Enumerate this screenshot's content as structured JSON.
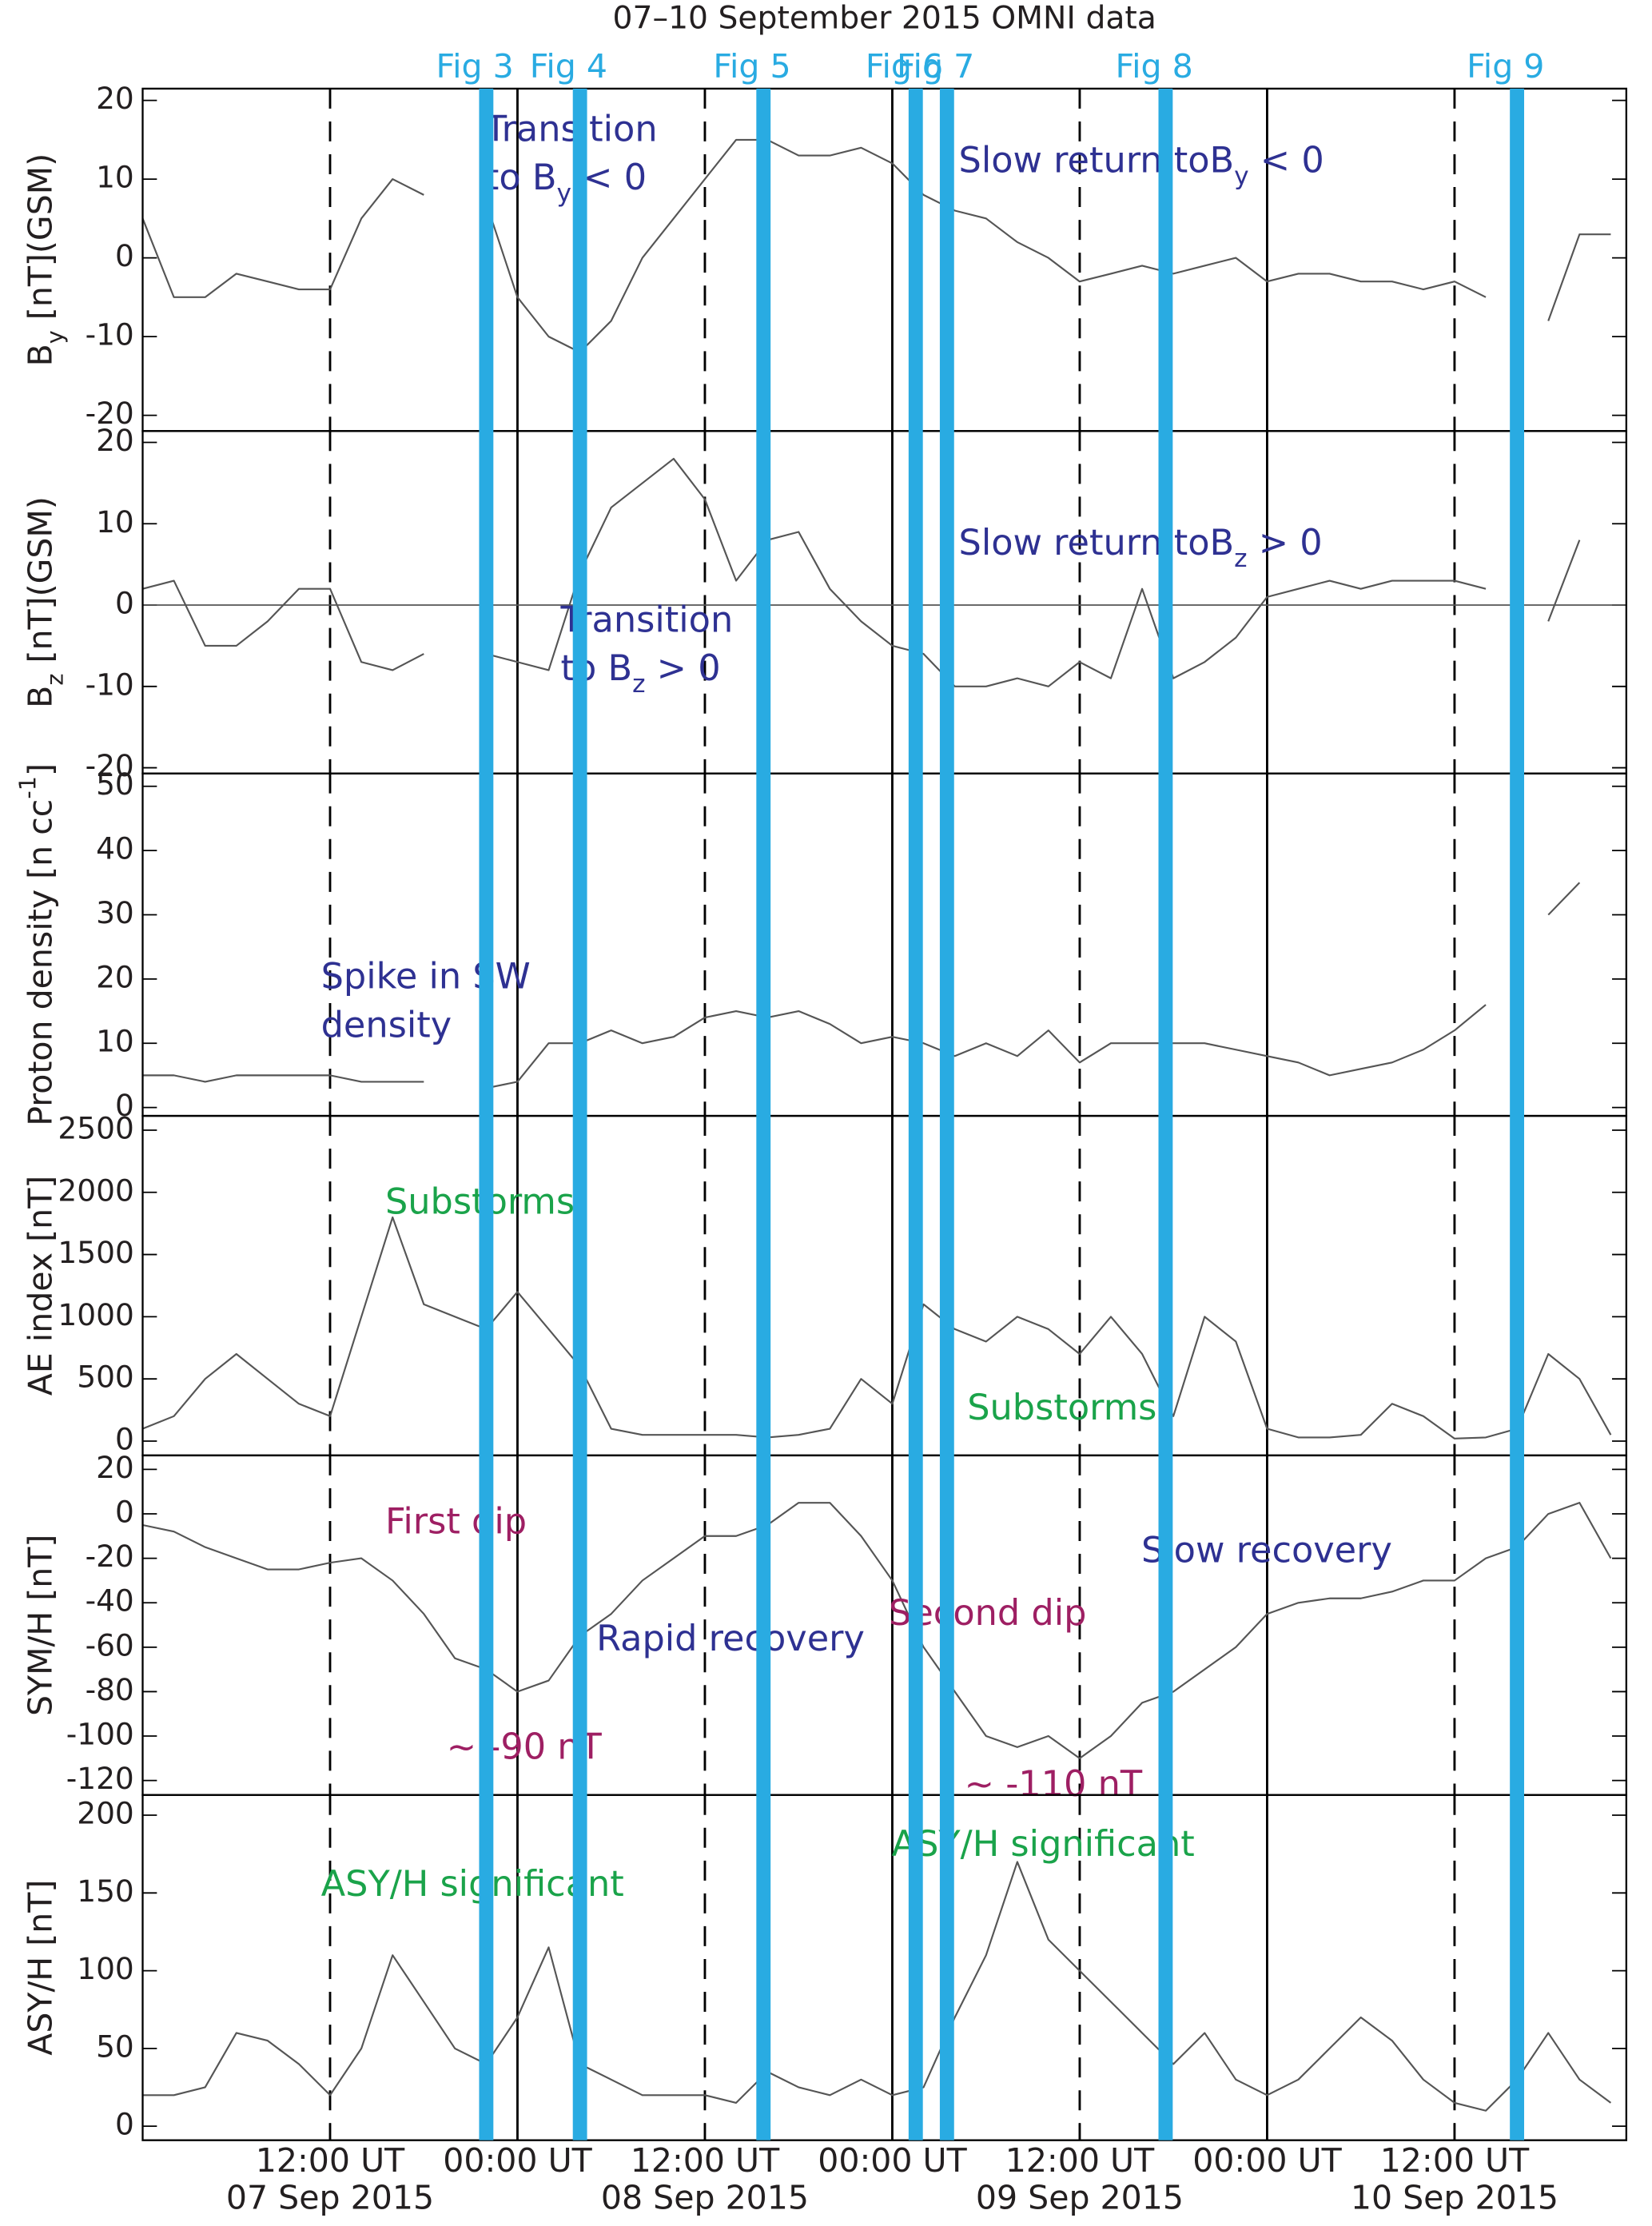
{
  "chart_data": {
    "title": "07–10 September 2015 OMNI data",
    "xlim": [
      "2015-09-07T00:00",
      "2015-09-10T23:00"
    ],
    "xticks": [
      {
        "value": "2015-09-07T12:00",
        "label": "12:00 UT",
        "line": "dashed"
      },
      {
        "value": "2015-09-08T00:00",
        "label": "00:00 UT",
        "line": "solid"
      },
      {
        "value": "2015-09-08T12:00",
        "label": "12:00 UT",
        "line": "dashed"
      },
      {
        "value": "2015-09-09T00:00",
        "label": "00:00 UT",
        "line": "solid"
      },
      {
        "value": "2015-09-09T12:00",
        "label": "12:00 UT",
        "line": "dashed"
      },
      {
        "value": "2015-09-10T00:00",
        "label": "00:00 UT",
        "line": "solid"
      },
      {
        "value": "2015-09-10T12:00",
        "label": "12:00 UT",
        "line": "dashed"
      }
    ],
    "xtick_dates": [
      {
        "value": "2015-09-07T12:00",
        "label": "07 Sep 2015"
      },
      {
        "value": "2015-09-08T12:00",
        "label": "08 Sep 2015"
      },
      {
        "value": "2015-09-09T12:00",
        "label": "09 Sep 2015"
      },
      {
        "value": "2015-09-10T12:00",
        "label": "10 Sep 2015"
      }
    ],
    "marker_color": "#29abe2",
    "markers": [
      {
        "label": "Fig 3",
        "x": "2015-09-07T22:00"
      },
      {
        "label": "Fig 4",
        "x": "2015-09-08T04:00"
      },
      {
        "label": "Fig 5",
        "x": "2015-09-08T15:45"
      },
      {
        "label": "Fig 6",
        "x": "2015-09-09T01:30"
      },
      {
        "label": "Fig 7",
        "x": "2015-09-09T03:30"
      },
      {
        "label": "Fig 8",
        "x": "2015-09-09T17:30"
      },
      {
        "label": "Fig 9",
        "x": "2015-09-10T16:00"
      }
    ],
    "x": [
      "2015-09-07T00:00",
      "2015-09-07T02:00",
      "2015-09-07T04:00",
      "2015-09-07T06:00",
      "2015-09-07T08:00",
      "2015-09-07T10:00",
      "2015-09-07T12:00",
      "2015-09-07T14:00",
      "2015-09-07T16:00",
      "2015-09-07T18:00",
      "2015-09-07T20:00",
      "2015-09-07T22:00",
      "2015-09-08T00:00",
      "2015-09-08T02:00",
      "2015-09-08T04:00",
      "2015-09-08T06:00",
      "2015-09-08T08:00",
      "2015-09-08T10:00",
      "2015-09-08T12:00",
      "2015-09-08T14:00",
      "2015-09-08T16:00",
      "2015-09-08T18:00",
      "2015-09-08T20:00",
      "2015-09-08T22:00",
      "2015-09-09T00:00",
      "2015-09-09T02:00",
      "2015-09-09T04:00",
      "2015-09-09T06:00",
      "2015-09-09T08:00",
      "2015-09-09T10:00",
      "2015-09-09T12:00",
      "2015-09-09T14:00",
      "2015-09-09T16:00",
      "2015-09-09T18:00",
      "2015-09-09T20:00",
      "2015-09-09T22:00",
      "2015-09-10T00:00",
      "2015-09-10T02:00",
      "2015-09-10T04:00",
      "2015-09-10T06:00",
      "2015-09-10T08:00",
      "2015-09-10T10:00",
      "2015-09-10T12:00",
      "2015-09-10T14:00",
      "2015-09-10T16:00",
      "2015-09-10T18:00",
      "2015-09-10T20:00",
      "2015-09-10T22:00"
    ],
    "panels": [
      {
        "type": "line",
        "color": "#555555",
        "ylabel": [
          "B",
          {
            "text": "y",
            "script": "sub"
          },
          " [nT](GSM)"
        ],
        "ylim": [
          -22,
          21.5
        ],
        "yticks": [
          -20,
          -10,
          0,
          10,
          20
        ],
        "values": [
          5,
          -5,
          -5,
          -2,
          -3,
          -4,
          -4,
          5,
          10,
          8,
          null,
          7,
          -5,
          -10,
          -12,
          -8,
          0,
          5,
          10,
          15,
          15,
          13,
          13,
          14,
          12,
          8,
          6,
          5,
          2,
          0,
          -3,
          -2,
          -1,
          -2,
          -1,
          0,
          -3,
          -2,
          -2,
          -3,
          -3,
          -4,
          -3,
          -5,
          null,
          -8,
          3,
          3
        ],
        "annotations": [
          {
            "color": "#2e3192",
            "lines": [
              [
                "Transition"
              ],
              [
                "to B",
                {
                  "text": "y",
                  "script": "sub"
                },
                " < 0"
              ]
            ]
          },
          {
            "color": "#2e3192",
            "lines": [
              [
                "Slow return toB",
                {
                  "text": "y",
                  "script": "sub"
                },
                " < 0"
              ]
            ]
          }
        ]
      },
      {
        "type": "line",
        "color": "#555555",
        "zero_line": true,
        "ylabel": [
          "B",
          {
            "text": "z",
            "script": "sub"
          },
          " [nT](GSM)"
        ],
        "ylim": [
          -20.7,
          21.4
        ],
        "yticks": [
          -20,
          -10,
          0,
          10,
          20
        ],
        "values": [
          2,
          3,
          -5,
          -5,
          -2,
          2,
          2,
          -7,
          -8,
          -6,
          null,
          -6,
          -7,
          -8,
          4,
          12,
          15,
          18,
          13,
          3,
          8,
          9,
          2,
          -2,
          -5,
          -6,
          -10,
          -10,
          -9,
          -10,
          -7,
          -9,
          2,
          -9,
          -7,
          -4,
          1,
          2,
          3,
          2,
          3,
          3,
          3,
          2,
          null,
          -2,
          8,
          null
        ],
        "annotations": [
          {
            "color": "#2e3192",
            "lines": [
              [
                "Slow return toB",
                {
                  "text": "z",
                  "script": "sub"
                },
                " > 0"
              ]
            ]
          },
          {
            "color": "#2e3192",
            "lines": [
              [
                "Transition"
              ],
              [
                "to B",
                {
                  "text": "z",
                  "script": "sub"
                },
                " > 0"
              ]
            ]
          }
        ]
      },
      {
        "type": "line",
        "color": "#555555",
        "ylabel": [
          "Proton density [n cc",
          {
            "text": "-1",
            "script": "super"
          },
          "]"
        ],
        "ylim": [
          -1.3,
          52
        ],
        "yticks": [
          0,
          10,
          20,
          30,
          40,
          50
        ],
        "values": [
          5,
          5,
          4,
          5,
          5,
          5,
          5,
          4,
          4,
          4,
          null,
          3,
          4,
          10,
          10,
          12,
          10,
          11,
          14,
          15,
          14,
          15,
          13,
          10,
          11,
          10,
          8,
          10,
          8,
          12,
          7,
          10,
          10,
          10,
          10,
          9,
          8,
          7,
          5,
          6,
          7,
          9,
          12,
          16,
          null,
          30,
          35,
          null
        ],
        "annotations": [
          {
            "color": "#2e3192",
            "lines": [
              [
                "Spike in SW"
              ],
              [
                "density"
              ]
            ]
          }
        ]
      },
      {
        "type": "line",
        "color": "#555555",
        "ylabel": [
          "AE index  [nT]"
        ],
        "ylim": [
          -115,
          2615
        ],
        "yticks": [
          0,
          500,
          1000,
          1500,
          2000,
          2500
        ],
        "values": [
          100,
          200,
          500,
          700,
          500,
          300,
          200,
          1000,
          1800,
          1100,
          1000,
          900,
          1200,
          900,
          600,
          100,
          50,
          50,
          50,
          50,
          30,
          50,
          100,
          500,
          300,
          1100,
          900,
          800,
          1000,
          900,
          700,
          1000,
          700,
          200,
          1000,
          800,
          100,
          30,
          30,
          50,
          300,
          200,
          20,
          30,
          100,
          700,
          500,
          50
        ],
        "annotations": [
          {
            "color": "#1aa34a",
            "lines": [
              [
                "Substorms"
              ]
            ]
          },
          {
            "color": "#1aa34a",
            "lines": [
              [
                "Substorms"
              ]
            ]
          }
        ]
      },
      {
        "type": "line",
        "color": "#555555",
        "ylabel": [
          "SYM/H [nT]"
        ],
        "ylim": [
          -126.5,
          26.3
        ],
        "yticks": [
          -120,
          -100,
          -80,
          -60,
          -40,
          -20,
          0,
          20
        ],
        "values": [
          -5,
          -8,
          -15,
          -20,
          -25,
          -25,
          -22,
          -20,
          -30,
          -45,
          -65,
          -70,
          -80,
          -75,
          -55,
          -45,
          -30,
          -20,
          -10,
          -10,
          -5,
          5,
          5,
          -10,
          -30,
          -60,
          -80,
          -100,
          -105,
          -100,
          -110,
          -100,
          -85,
          -80,
          -70,
          -60,
          -45,
          -40,
          -38,
          -38,
          -35,
          -30,
          -30,
          -20,
          -15,
          0,
          5,
          -20
        ],
        "annotations": [
          {
            "color": "#9e1f63",
            "lines": [
              [
                "First dip"
              ]
            ]
          },
          {
            "color": "#9e1f63",
            "lines": [
              [
                "~ -90 nT"
              ]
            ]
          },
          {
            "color": "#2e3192",
            "lines": [
              [
                "Rapid recovery"
              ]
            ]
          },
          {
            "color": "#9e1f63",
            "lines": [
              [
                "Second dip"
              ]
            ]
          },
          {
            "color": "#2e3192",
            "lines": [
              [
                "Slow recovery"
              ]
            ]
          },
          {
            "color": "#9e1f63",
            "lines": [
              [
                "~ -110 nT"
              ]
            ]
          }
        ]
      },
      {
        "type": "line",
        "color": "#555555",
        "ylabel": [
          "ASY/H [nT]"
        ],
        "ylim": [
          -9,
          213
        ],
        "yticks": [
          0,
          50,
          100,
          150,
          200
        ],
        "values": [
          20,
          20,
          25,
          60,
          55,
          40,
          20,
          50,
          110,
          80,
          50,
          40,
          70,
          115,
          40,
          30,
          20,
          20,
          20,
          15,
          35,
          25,
          20,
          30,
          20,
          25,
          70,
          110,
          170,
          120,
          100,
          80,
          60,
          40,
          60,
          30,
          20,
          30,
          50,
          70,
          55,
          30,
          15,
          10,
          30,
          60,
          30,
          15
        ],
        "annotations": [
          {
            "color": "#1aa34a",
            "lines": [
              [
                "ASY/H significant"
              ]
            ]
          },
          {
            "color": "#1aa34a",
            "lines": [
              [
                "ASY/H significant"
              ]
            ]
          }
        ]
      }
    ]
  }
}
